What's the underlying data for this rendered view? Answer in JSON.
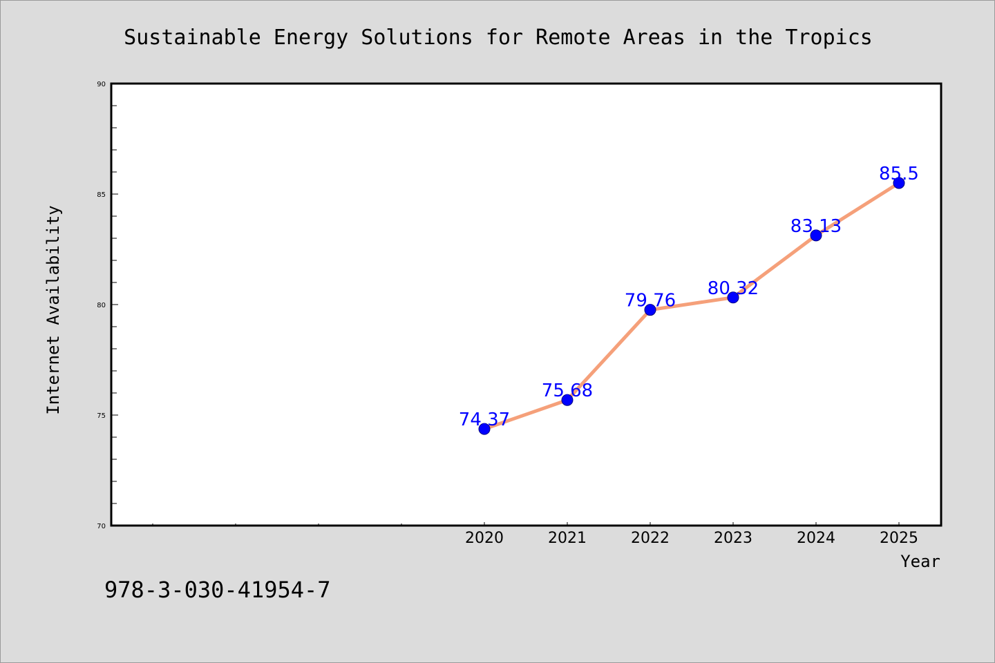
{
  "chart_data": {
    "type": "line",
    "title": "Sustainable Energy Solutions for Remote Areas in the Tropics",
    "xlabel": "Year",
    "ylabel": "Internet Availability",
    "x": [
      "2020",
      "2021",
      "2022",
      "2023",
      "2024",
      "2025"
    ],
    "series": [
      {
        "values": [
          74.37,
          75.68,
          79.76,
          80.32,
          83.13,
          85.5
        ],
        "data_labels": [
          "74.37",
          "75.68",
          "79.76",
          "80.32",
          "83.13",
          "85.5"
        ],
        "line_color": "#f5a07a",
        "marker_color": "#0000ff"
      }
    ],
    "ylim": [
      70,
      90
    ],
    "yticks": [
      "70",
      "75",
      "80",
      "85",
      "90"
    ],
    "grid": false,
    "legend": "none"
  },
  "footer": {
    "code": "978-3-030-41954-7"
  },
  "colors": {
    "background": "#dcdcdc",
    "plot_background": "#ffffff",
    "data_label": "#0000ff"
  }
}
